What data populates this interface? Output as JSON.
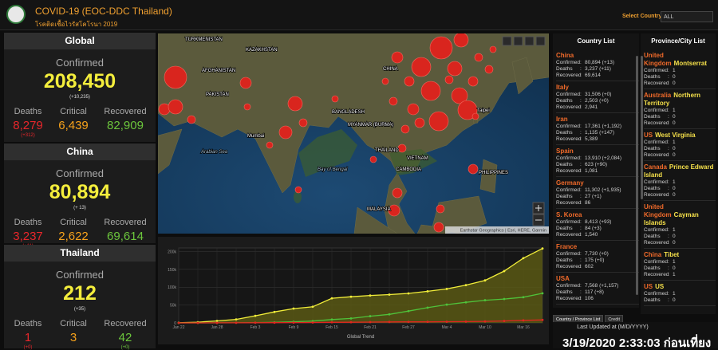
{
  "header": {
    "title": "COVID-19 (EOC-DDC Thailand)",
    "subtitle": "โรคติดเชื้อไวรัสโคโรนา 2019",
    "select_label": "Select Country",
    "select_value": "ALL"
  },
  "summary": [
    {
      "region": "Global",
      "confirmed_label": "Confirmed",
      "confirmed": "208,450",
      "confirmed_change": "(+10,235)",
      "stats": [
        {
          "label": "Deaths",
          "value": "8,279",
          "change": "(+312)"
        },
        {
          "label": "Critical",
          "value": "6,439"
        },
        {
          "label": "Recovered",
          "value": "82,909"
        }
      ]
    },
    {
      "region": "China",
      "confirmed_label": "Confirmed",
      "confirmed": "80,894",
      "confirmed_change": "(+ 13)",
      "stats": [
        {
          "label": "Deaths",
          "value": "3,237",
          "change": "(+11)"
        },
        {
          "label": "Critical",
          "value": "2,622"
        },
        {
          "label": "Recovered",
          "value": "69,614"
        }
      ]
    },
    {
      "region": "Thailand",
      "confirmed_label": "Confirmed",
      "confirmed": "212",
      "confirmed_change": "(+35)",
      "stats": [
        {
          "label": "Deaths",
          "value": "1",
          "change": "(+0)"
        },
        {
          "label": "Critical",
          "value": "3"
        },
        {
          "label": "Recovered",
          "value": "42",
          "change": "(+0)"
        }
      ]
    }
  ],
  "map": {
    "labels": [
      "TURKMENISTAN",
      "KAZAKHSTAN",
      "AFGHANISTAN",
      "PAKISTAN",
      "CHINA",
      "BANGLADESH",
      "MYANMAR (BURMA)",
      "THAILAND",
      "VIETNAM",
      "CAMBODIA",
      "PHILIPPINES",
      "MALAYSIA",
      "Arabian Sea",
      "Bay of Bengal",
      "Mumbai",
      "Taipei"
    ],
    "attribution": "Earthstar Geographics | Esri, HERE, Garmin"
  },
  "chart_data": {
    "type": "line",
    "xlabel": "Global Trend",
    "categories": [
      "Jan 22",
      null,
      "Jan 28",
      null,
      "Feb 3",
      null,
      "Feb 9",
      null,
      "Feb 15",
      null,
      "Feb 21",
      null,
      "Feb 27",
      null,
      "Mar 4",
      null,
      "Mar 10",
      null,
      "Mar 16",
      null
    ],
    "series": [
      {
        "color": "#f2ee3a",
        "fill": "#5e5c14",
        "values": [
          555,
          2000,
          5500,
          9800,
          19900,
          30800,
          40100,
          45200,
          69000,
          73300,
          76800,
          79300,
          82700,
          88400,
          95100,
          105800,
          119100,
          145200,
          181500,
          208450
        ]
      },
      {
        "color": "#4fc23a",
        "values": [
          28,
          40,
          107,
          213,
          600,
          1500,
          3200,
          5100,
          9400,
          12600,
          18800,
          24000,
          33000,
          42700,
          51200,
          57600,
          63500,
          66900,
          72000,
          82909
        ]
      },
      {
        "color": "#e0261f",
        "values": [
          17,
          56,
          132,
          213,
          427,
          565,
          905,
          1116,
          1666,
          1871,
          2250,
          2625,
          2809,
          2996,
          3254,
          3559,
          4260,
          5400,
          7100,
          8279
        ]
      }
    ],
    "ylim": [
      0,
      210000
    ],
    "yticks": [
      0,
      {
        "value": 50000,
        "label": "50k"
      },
      {
        "value": 100000,
        "label": "100k"
      },
      {
        "value": 150000,
        "label": "150k"
      },
      {
        "value": 200000,
        "label": "200k"
      }
    ],
    "grid": true
  },
  "country_list": {
    "title": "Country List",
    "labels": [
      "Confirmed",
      "Deaths",
      "Recovered"
    ],
    "sep": ":",
    "rows": [
      {
        "name": "China",
        "confirmed": "80,894 (+13)",
        "deaths": "3,237 (+11)",
        "recovered": "69,614"
      },
      {
        "name": "Italy",
        "confirmed": "31,506 (+0)",
        "deaths": "2,503 (+0)",
        "recovered": "2,941"
      },
      {
        "name": "Iran",
        "confirmed": "17,361 (+1,192)",
        "deaths": "1,135 (+147)",
        "recovered": "5,389"
      },
      {
        "name": "Spain",
        "confirmed": "13,910 (+2,084)",
        "deaths": "623 (+90)",
        "recovered": "1,081"
      },
      {
        "name": "Germany",
        "confirmed": "11,302 (+1,935)",
        "deaths": "27 (+1)",
        "recovered": "86"
      },
      {
        "name": "S. Korea",
        "confirmed": "8,413 (+93)",
        "deaths": "84 (+3)",
        "recovered": "1,540"
      },
      {
        "name": "France",
        "confirmed": "7,730 (+0)",
        "deaths": "175 (+0)",
        "recovered": "602"
      },
      {
        "name": "USA",
        "confirmed": "7,568 (+1,157)",
        "deaths": "117 (+8)",
        "recovered": "106"
      }
    ]
  },
  "province_list": {
    "title": "Province/City List",
    "rows": [
      {
        "country": "United Kingdom",
        "province": "Montserrat",
        "confirmed": "1",
        "deaths": "0",
        "recovered": "0"
      },
      {
        "country": "Australia",
        "province": "Northern Territory",
        "confirmed": "1",
        "deaths": "0",
        "recovered": "0"
      },
      {
        "country": "US",
        "province": "West Virginia",
        "confirmed": "1",
        "deaths": "0",
        "recovered": "0"
      },
      {
        "country": "Canada",
        "province": "Prince Edward Island",
        "confirmed": "1",
        "deaths": "0",
        "recovered": "0"
      },
      {
        "country": "United Kingdom",
        "province": "Cayman Islands",
        "confirmed": "1",
        "deaths": "0",
        "recovered": "0"
      },
      {
        "country": "China",
        "province": "Tibet",
        "confirmed": "1",
        "deaths": "0",
        "recovered": "1"
      },
      {
        "country": "US",
        "province": "US",
        "confirmed": "1",
        "deaths": "0"
      }
    ]
  },
  "tabs": [
    "Country / Province List",
    "Credit"
  ],
  "footer": {
    "label": "Last Updated at (M/D/YYYY)",
    "value": "3/19/2020 2:33:03 ก่อนเที่ยง"
  }
}
